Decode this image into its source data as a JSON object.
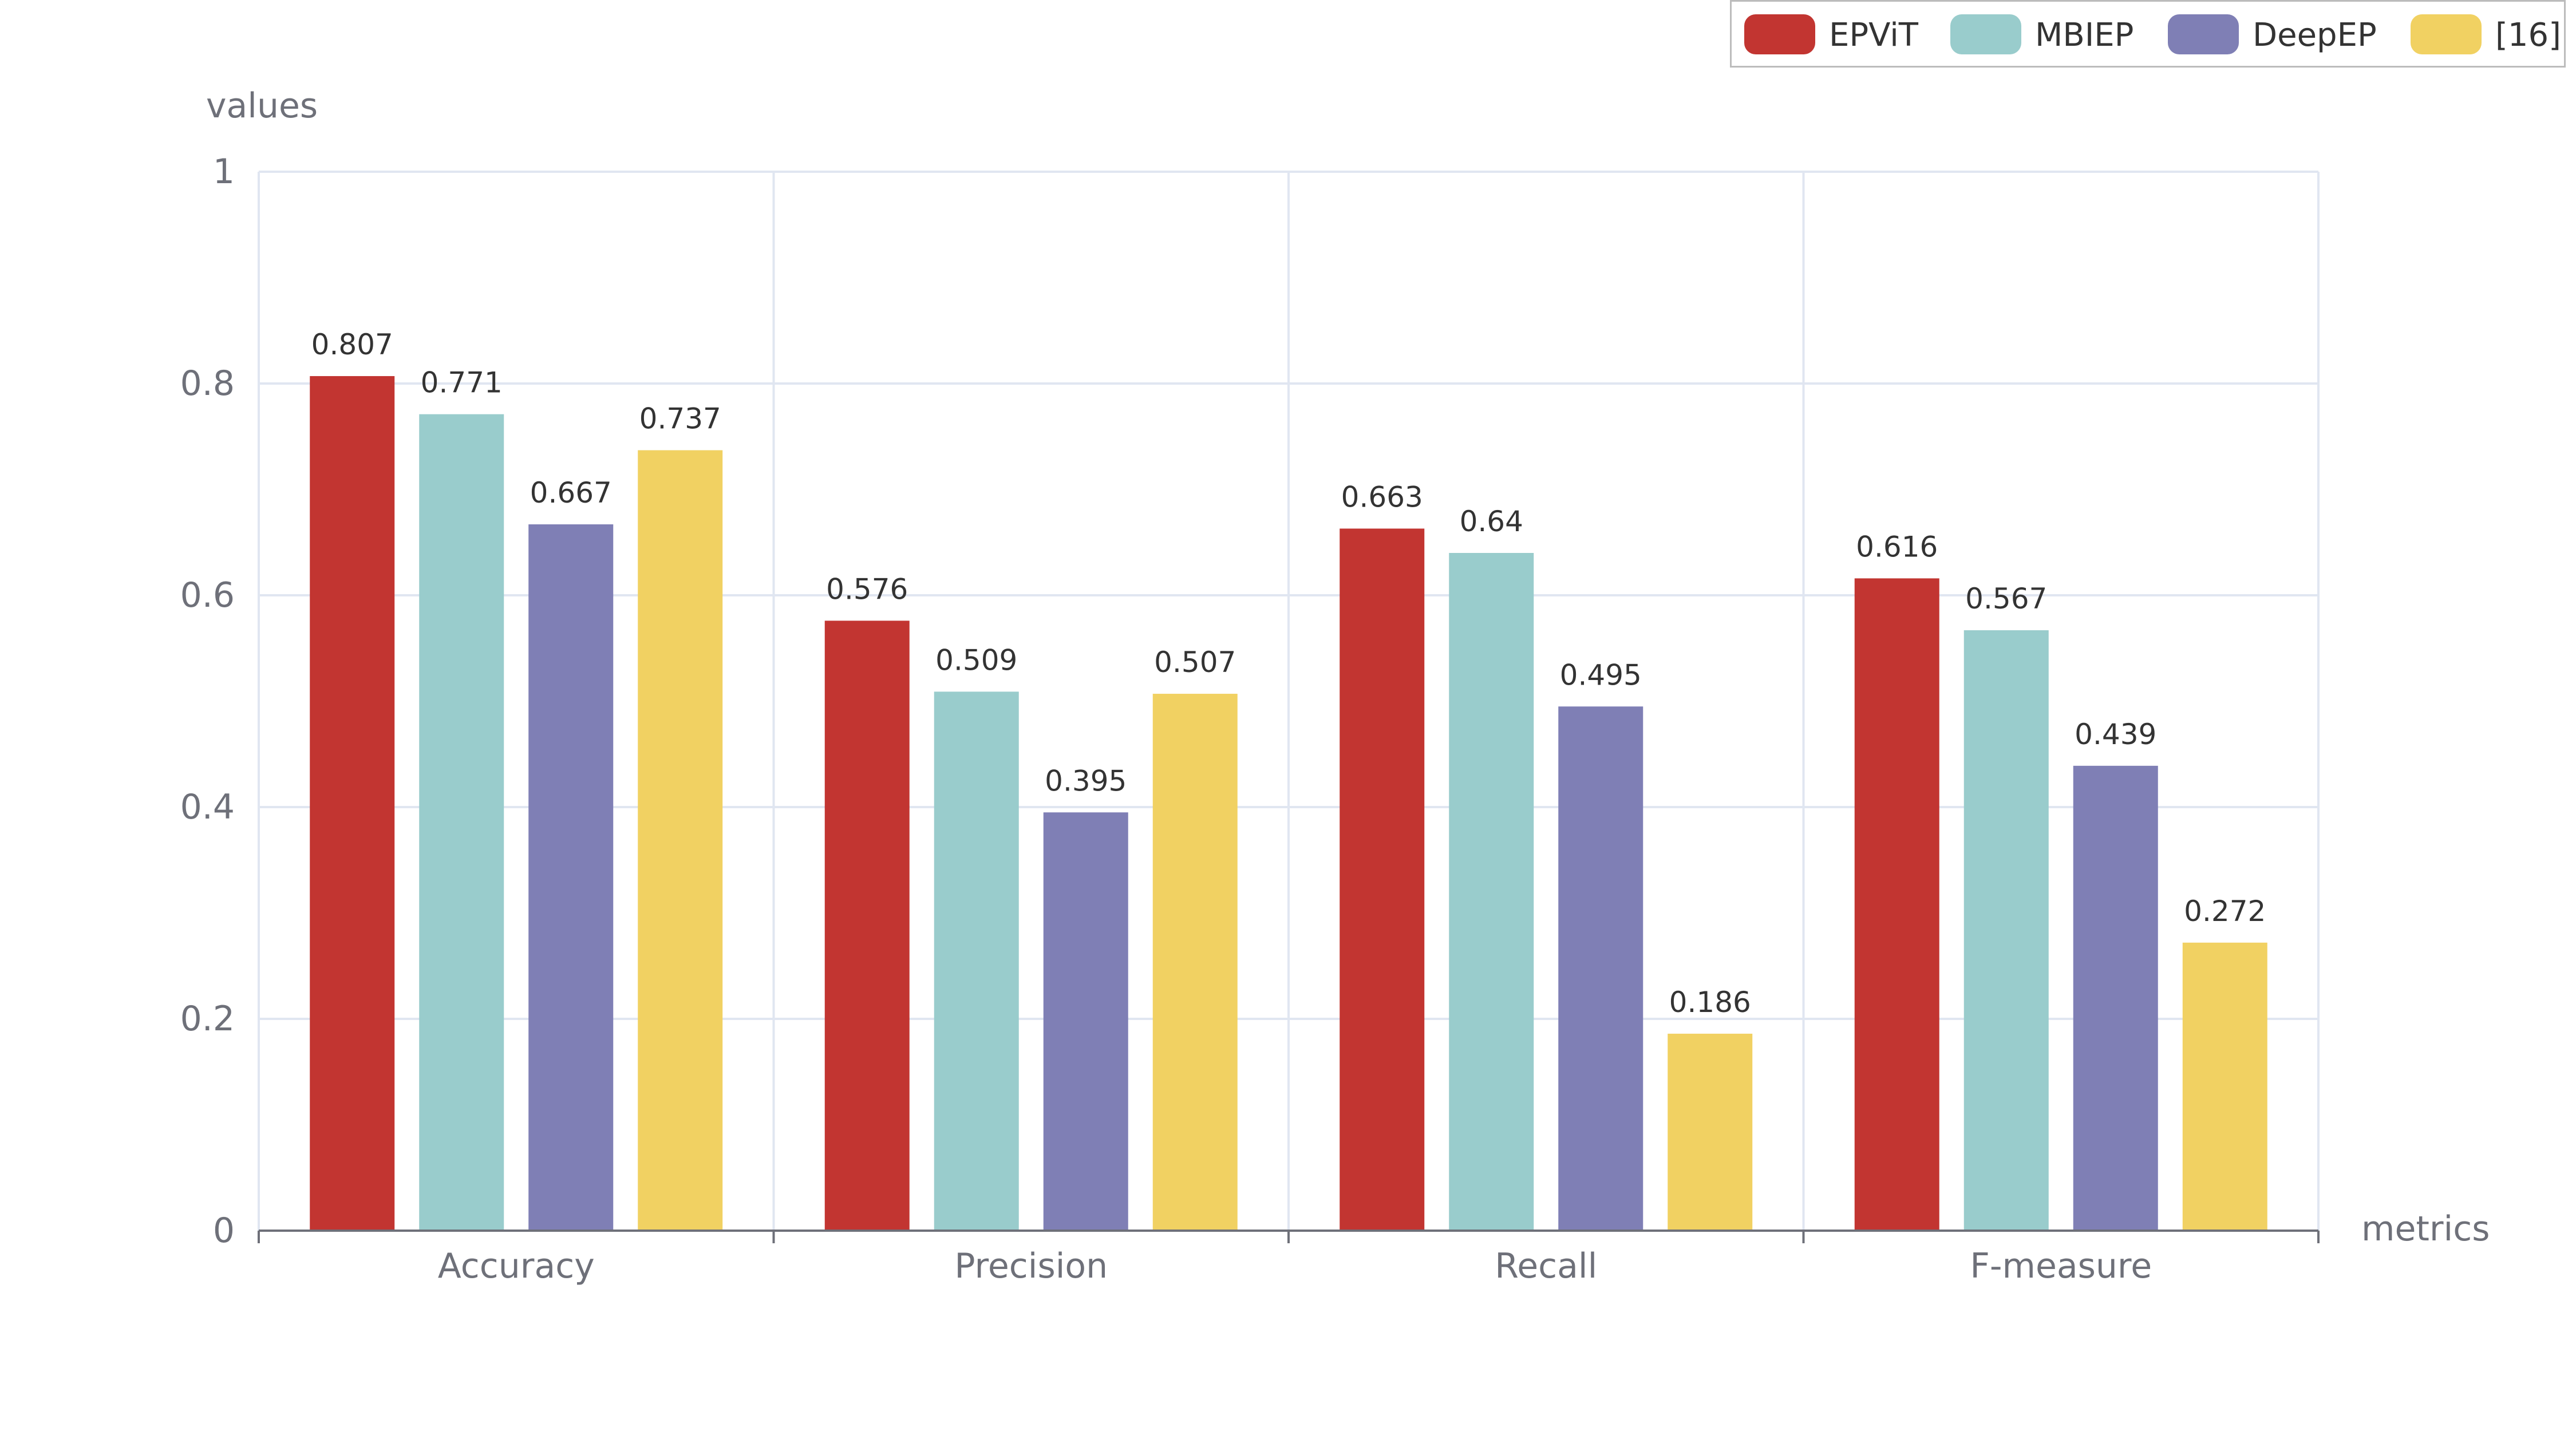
{
  "chart_data": {
    "type": "bar",
    "categories": [
      "Accuracy",
      "Precision",
      "Recall",
      "F-measure"
    ],
    "series": [
      {
        "name": "EPViT",
        "color": "#c23531",
        "values": [
          0.807,
          0.576,
          0.663,
          0.616
        ]
      },
      {
        "name": "MBIEP",
        "color": "#99cccc",
        "values": [
          0.771,
          0.509,
          0.64,
          0.567
        ]
      },
      {
        "name": "DeepEP",
        "color": "#7f7fb5",
        "values": [
          0.667,
          0.395,
          0.495,
          0.439
        ]
      },
      {
        "name": "[16]",
        "color": "#f1d162",
        "values": [
          0.737,
          0.507,
          0.186,
          0.272
        ]
      }
    ],
    "xlabel": "metrics",
    "ylabel": "values",
    "ylim": [
      0,
      1
    ],
    "yticks": [
      "0",
      "0.2",
      "0.4",
      "0.6",
      "0.8",
      "1"
    ],
    "grid": true,
    "legend": "top-right"
  }
}
